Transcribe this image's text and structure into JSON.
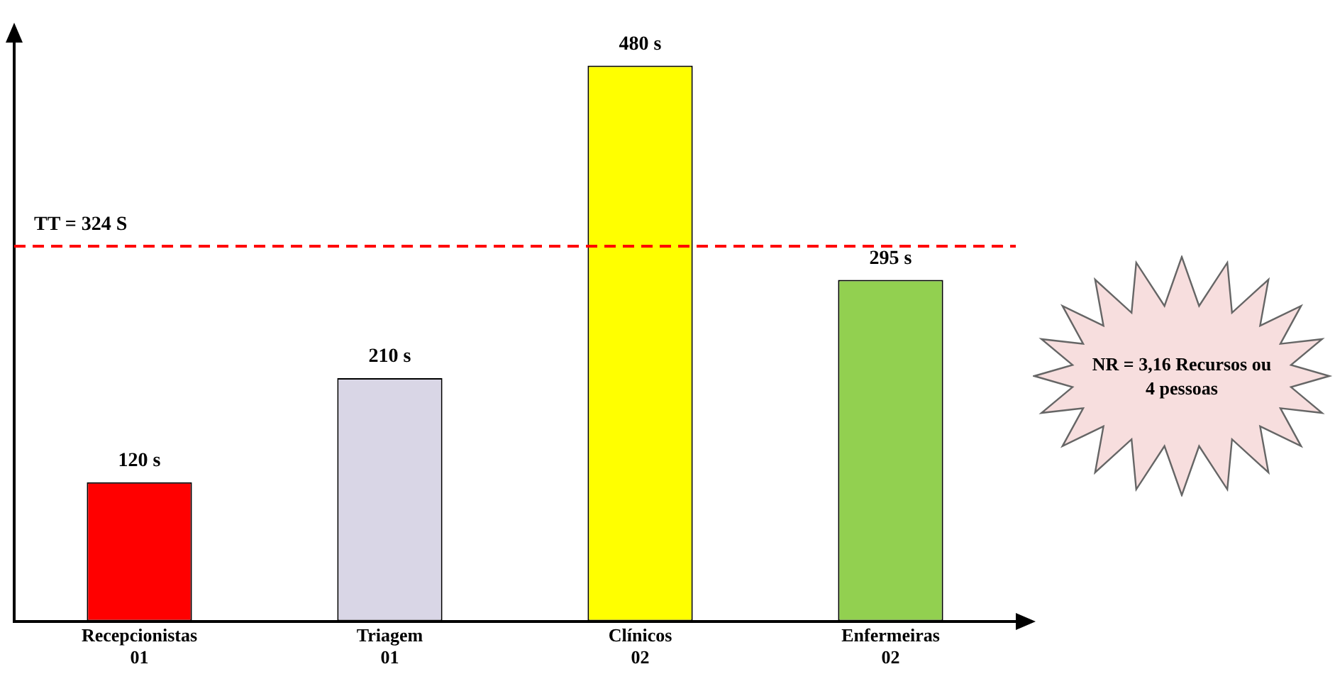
{
  "chart_data": {
    "type": "bar",
    "categories": [
      "Recepcionistas\n01",
      "Triagem\n01",
      "Clínicos\n02",
      "Enfermeiras\n02"
    ],
    "values": [
      120,
      210,
      480,
      295
    ],
    "colors": [
      "#ff0000",
      "#d9d6e6",
      "#ffff00",
      "#92d050"
    ],
    "value_labels": [
      "120 s",
      "210 s",
      "480 s",
      "295 s"
    ],
    "ref_lines": [
      {
        "axis": "y",
        "value": 324,
        "label": "TT = 324 S",
        "color": "#ff0000",
        "line_style": "dashed"
      }
    ],
    "annotations": [
      "NR = 3,16 Recursos ou 4 pessoas"
    ],
    "tick_labels": "x",
    "grid": false,
    "legend": false
  }
}
